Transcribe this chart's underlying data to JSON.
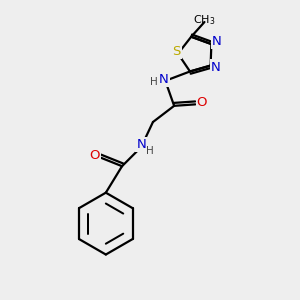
{
  "background_color": "#eeeeee",
  "figsize": [
    3.0,
    3.0
  ],
  "dpi": 100,
  "atom_colors": {
    "C": "#000000",
    "N": "#0000cc",
    "O": "#dd0000",
    "S": "#bbaa00",
    "H": "#444444"
  },
  "bond_color": "#000000",
  "bond_width": 1.6,
  "font_size": 9.0,
  "xlim": [
    0,
    10
  ],
  "ylim": [
    0,
    10
  ]
}
